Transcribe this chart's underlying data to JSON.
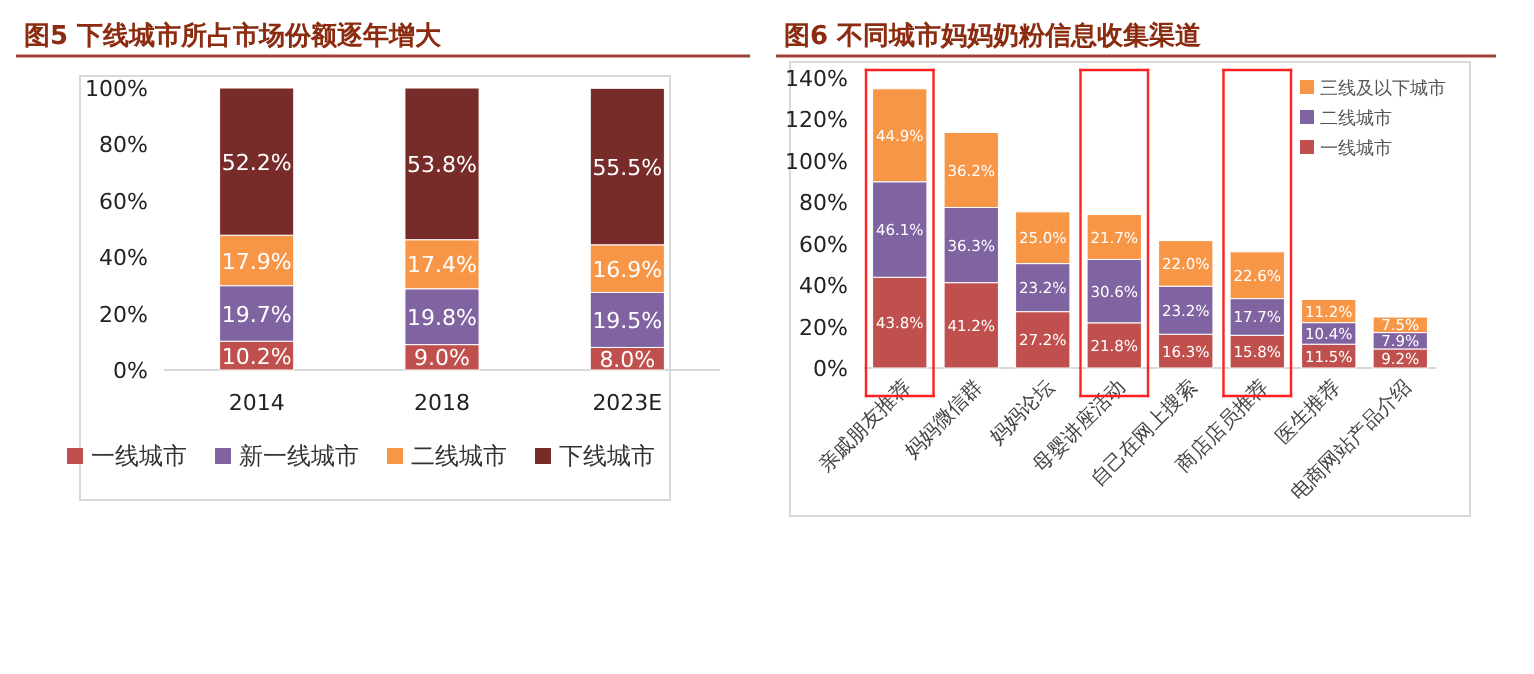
{
  "chart_data": [
    {
      "type": "bar",
      "title": "图5 下线城市所占市场份额逐年增大",
      "stacked": true,
      "categories": [
        "2014",
        "2018",
        "2023E"
      ],
      "series": [
        {
          "name": "一线城市",
          "color": "#c0504d",
          "values": [
            10.2,
            9.0,
            8.0
          ],
          "value_labels": [
            "10.2%",
            "9.0%",
            "8.0%"
          ]
        },
        {
          "name": "新一线城市",
          "color": "#8064a2",
          "values": [
            19.7,
            19.8,
            19.5
          ],
          "value_labels": [
            "19.7%",
            "19.8%",
            "19.5%"
          ]
        },
        {
          "name": "二线城市",
          "color": "#f79646",
          "values": [
            17.9,
            17.4,
            16.9
          ],
          "value_labels": [
            "17.9%",
            "17.4%",
            "16.9%"
          ]
        },
        {
          "name": "下线城市",
          "color": "#772c2a",
          "values": [
            52.2,
            53.8,
            55.5
          ],
          "value_labels": [
            "52.2%",
            "53.8%",
            "55.5%"
          ]
        }
      ],
      "ylim": [
        0,
        100
      ],
      "yticks": [
        {
          "value": 0,
          "label": "0%"
        },
        {
          "value": 20,
          "label": "20%"
        },
        {
          "value": 40,
          "label": "40%"
        },
        {
          "value": 60,
          "label": "60%"
        },
        {
          "value": 80,
          "label": "80%"
        },
        {
          "value": 100,
          "label": "100%"
        }
      ],
      "legend": "bottom"
    },
    {
      "type": "bar",
      "title": "图6 不同城市妈妈奶粉信息收集渠道",
      "stacked": true,
      "categories": [
        "亲戚朋友推荐",
        "妈妈微信群",
        "妈妈论坛",
        "母婴讲座活动",
        "自己在网上搜索",
        "商店店员推荐",
        "医生推荐",
        "电商网站产品介绍"
      ],
      "series": [
        {
          "name": "一线城市",
          "color": "#c0504d",
          "values": [
            43.8,
            41.2,
            27.2,
            21.8,
            16.3,
            15.8,
            11.5,
            9.2
          ],
          "value_labels": [
            "43.8%",
            "41.2%",
            "27.2%",
            "21.8%",
            "16.3%",
            "15.8%",
            "11.5%",
            "9.2%"
          ]
        },
        {
          "name": "二线城市",
          "color": "#8064a2",
          "values": [
            46.1,
            36.3,
            23.2,
            30.6,
            23.2,
            17.7,
            10.4,
            7.9
          ],
          "value_labels": [
            "46.1%",
            "36.3%",
            "23.2%",
            "30.6%",
            "23.2%",
            "17.7%",
            "10.4%",
            "7.9%"
          ]
        },
        {
          "name": "三线及以下城市",
          "color": "#f79646",
          "values": [
            44.9,
            36.2,
            25.0,
            21.7,
            22.0,
            22.6,
            11.2,
            7.5
          ],
          "value_labels": [
            "44.9%",
            "36.2%",
            "25.0%",
            "21.7%",
            "22.0%",
            "22.6%",
            "11.2%",
            "7.5%"
          ]
        }
      ],
      "ylim": [
        0,
        140
      ],
      "yticks": [
        {
          "value": 0,
          "label": "0%"
        },
        {
          "value": 20,
          "label": "20%"
        },
        {
          "value": 40,
          "label": "40%"
        },
        {
          "value": 60,
          "label": "60%"
        },
        {
          "value": 80,
          "label": "80%"
        },
        {
          "value": 100,
          "label": "100%"
        },
        {
          "value": 120,
          "label": "120%"
        },
        {
          "value": 140,
          "label": "140%"
        }
      ],
      "legend": "top right"
    }
  ]
}
